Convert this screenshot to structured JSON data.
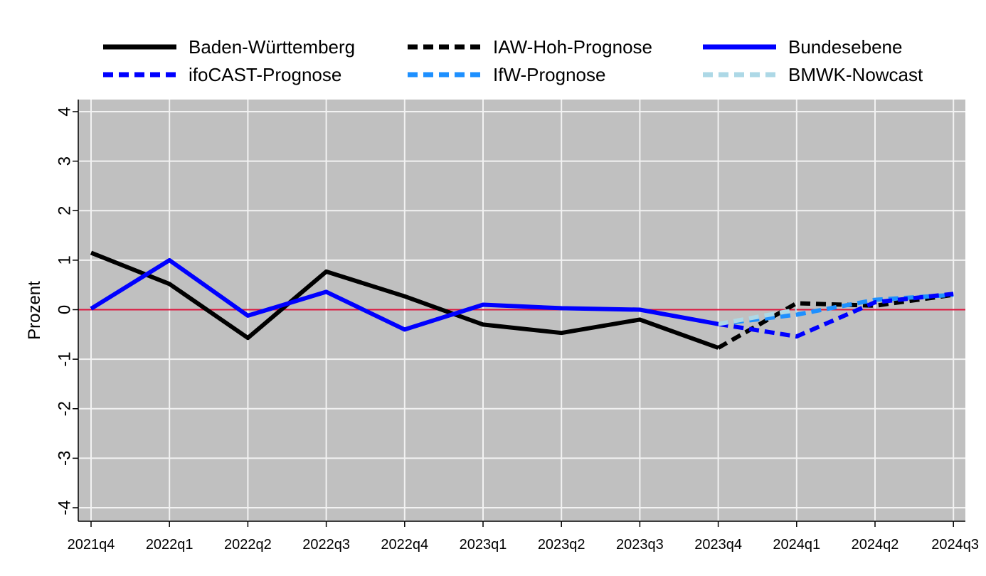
{
  "chart_data": {
    "type": "line",
    "xlabel": "",
    "ylabel": "Prozent",
    "ylim": [
      -4,
      4
    ],
    "yticks": [
      -4,
      -3,
      -2,
      -1,
      0,
      1,
      2,
      3,
      4
    ],
    "categories": [
      "2021q4",
      "2022q1",
      "2022q2",
      "2022q3",
      "2022q4",
      "2023q1",
      "2023q2",
      "2023q3",
      "2023q4",
      "2024q1",
      "2024q2",
      "2024q3"
    ],
    "grid": true,
    "legend_position": "top",
    "reference_line": {
      "y": 0,
      "color": "#dc143c"
    },
    "background_color": "#c0c0c0",
    "series": [
      {
        "name": "Baden-Württemberg",
        "color": "#000000",
        "dash": "solid",
        "values": [
          1.15,
          0.52,
          -0.57,
          0.77,
          0.27,
          -0.3,
          -0.47,
          -0.2,
          -0.77,
          null,
          null,
          null
        ]
      },
      {
        "name": "IAW-Hoh-Prognose",
        "color": "#000000",
        "dash": "dashed",
        "values": [
          null,
          null,
          null,
          null,
          null,
          null,
          null,
          null,
          -0.77,
          0.13,
          0.08,
          0.3
        ]
      },
      {
        "name": "Bundesebene",
        "color": "#0000ff",
        "dash": "solid",
        "values": [
          0.02,
          1.0,
          -0.12,
          0.36,
          -0.4,
          0.1,
          0.03,
          0.0,
          -0.29,
          null,
          null,
          null
        ]
      },
      {
        "name": "ifoCAST-Prognose",
        "color": "#0000ff",
        "dash": "dashed",
        "values": [
          null,
          null,
          null,
          null,
          null,
          null,
          null,
          null,
          -0.29,
          -0.54,
          0.15,
          0.32
        ]
      },
      {
        "name": "IfW-Prognose",
        "color": "#1e90ff",
        "dash": "dashed",
        "values": [
          null,
          null,
          null,
          null,
          null,
          null,
          null,
          null,
          -0.29,
          -0.1,
          0.2,
          0.3
        ]
      },
      {
        "name": "BMWK-Nowcast",
        "color": "#add8e6",
        "dash": "dashed",
        "values": [
          null,
          null,
          null,
          null,
          null,
          null,
          null,
          null,
          -0.29,
          0.0,
          null,
          null
        ]
      }
    ]
  }
}
